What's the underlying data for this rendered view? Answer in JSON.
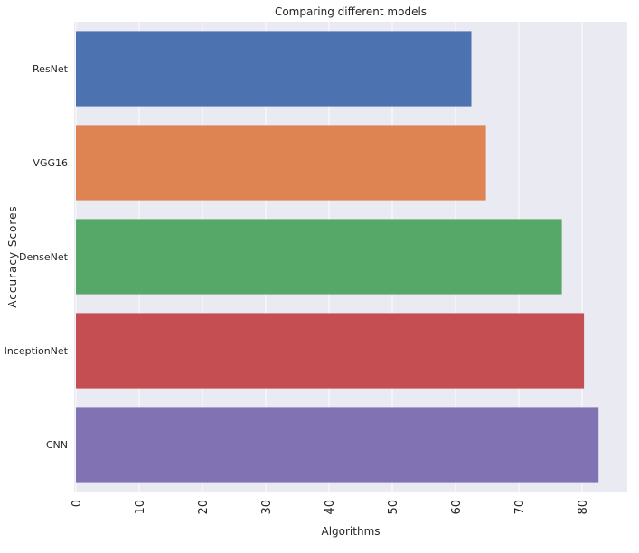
{
  "chart_data": {
    "type": "bar",
    "orientation": "horizontal",
    "title": "Comparing different models",
    "xlabel": "Algorithms",
    "ylabel": "Accuracy Scores",
    "categories": [
      "ResNet",
      "VGG16",
      "DenseNet",
      "InceptionNet",
      "CNN"
    ],
    "values": [
      62.5,
      64.8,
      76.8,
      80.3,
      82.6
    ],
    "colors": [
      "#4c72b0",
      "#dd8452",
      "#55a868",
      "#c44e52",
      "#8172b3"
    ],
    "xticks": [
      "0",
      "10",
      "20",
      "30",
      "40",
      "50",
      "60",
      "70",
      "80"
    ],
    "xlim": [
      0,
      87
    ],
    "grid": true,
    "background": "#eaeaf2"
  }
}
